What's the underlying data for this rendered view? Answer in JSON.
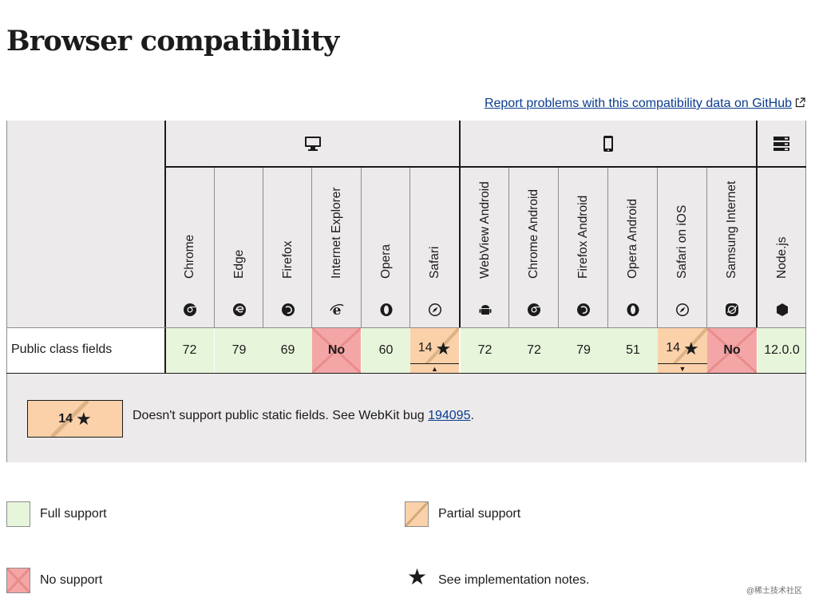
{
  "page": {
    "title": "Browser compatibility",
    "report_link": "Report problems with this compatibility data on GitHub"
  },
  "platforms": [
    {
      "name": "desktop",
      "icon": "desktop-icon"
    },
    {
      "name": "mobile",
      "icon": "mobile-icon"
    },
    {
      "name": "server",
      "icon": "server-icon"
    }
  ],
  "browsers": [
    {
      "label": "Chrome",
      "icon": "chrome-icon"
    },
    {
      "label": "Edge",
      "icon": "edge-icon"
    },
    {
      "label": "Firefox",
      "icon": "firefox-icon"
    },
    {
      "label": "Internet Explorer",
      "icon": "ie-icon"
    },
    {
      "label": "Opera",
      "icon": "opera-icon"
    },
    {
      "label": "Safari",
      "icon": "safari-icon"
    },
    {
      "label": "WebView Android",
      "icon": "android-icon"
    },
    {
      "label": "Chrome Android",
      "icon": "chrome-icon"
    },
    {
      "label": "Firefox Android",
      "icon": "firefox-icon"
    },
    {
      "label": "Opera Android",
      "icon": "opera-icon"
    },
    {
      "label": "Safari on iOS",
      "icon": "safari-icon"
    },
    {
      "label": "Samsung Internet",
      "icon": "samsung-icon"
    },
    {
      "label": "Node.js",
      "icon": "nodejs-icon"
    }
  ],
  "feature": {
    "name": "Public class fields",
    "support": [
      {
        "value": "72",
        "status": "full"
      },
      {
        "value": "79",
        "status": "full"
      },
      {
        "value": "69",
        "status": "full"
      },
      {
        "value": "No",
        "status": "no"
      },
      {
        "value": "60",
        "status": "full"
      },
      {
        "value": "14",
        "status": "partial",
        "note": true,
        "toggle": "up"
      },
      {
        "value": "72",
        "status": "full"
      },
      {
        "value": "72",
        "status": "full"
      },
      {
        "value": "79",
        "status": "full"
      },
      {
        "value": "51",
        "status": "full"
      },
      {
        "value": "14",
        "status": "partial",
        "note": true,
        "toggle": "down"
      },
      {
        "value": "No",
        "status": "no"
      },
      {
        "value": "12.0.0",
        "status": "full"
      }
    ]
  },
  "note": {
    "version": "14",
    "text_before": "Doesn't support public static fields. See WebKit bug ",
    "link": "194095",
    "text_after": "."
  },
  "legend": {
    "full": "Full support",
    "partial": "Partial support",
    "no": "No support",
    "notes": "See implementation notes."
  },
  "watermark": "@稀土技术社区",
  "colors": {
    "full": "#e7f5db",
    "partial": "#fbd1aa",
    "no": "#f4a6a6",
    "link": "#0a3c8f"
  }
}
